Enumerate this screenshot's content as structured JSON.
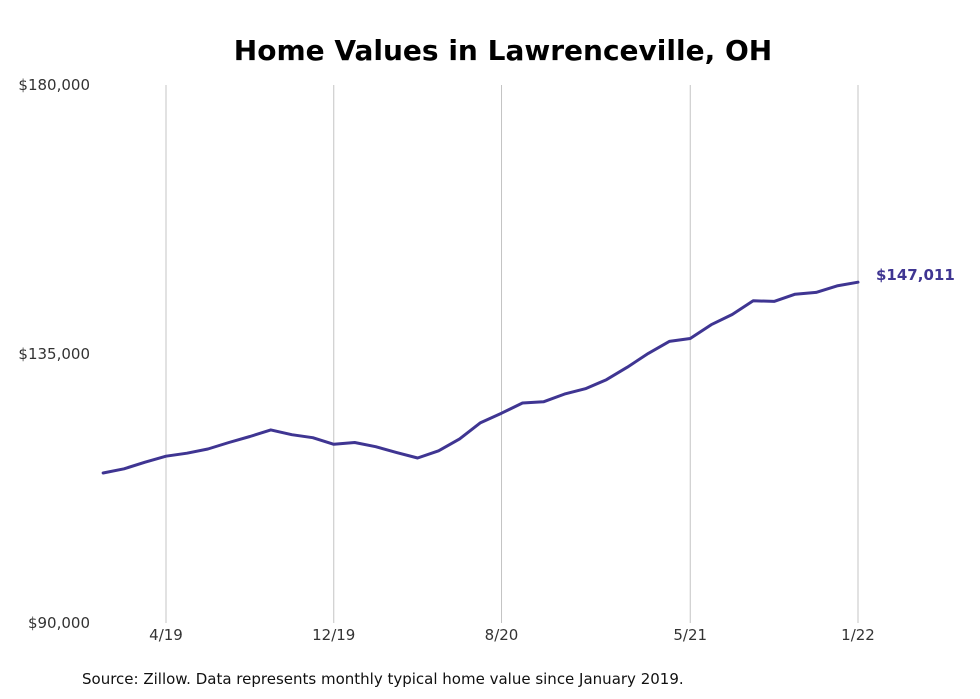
{
  "chart_data": {
    "type": "line",
    "title": "Home Values in Lawrenceville, OH",
    "xlabel": "",
    "ylabel": "",
    "ylim": [
      90000,
      180000
    ],
    "y_ticks": [
      {
        "value": 180000,
        "label": "$180,000"
      },
      {
        "value": 135000,
        "label": "$135,000"
      },
      {
        "value": 90000,
        "label": "$90,000"
      }
    ],
    "x_ticks": [
      {
        "date": "2019-04",
        "label": "4/19"
      },
      {
        "date": "2019-12",
        "label": "12/19"
      },
      {
        "date": "2020-08",
        "label": "8/20"
      },
      {
        "date": "2021-05",
        "label": "5/21"
      },
      {
        "date": "2022-01",
        "label": "1/22"
      }
    ],
    "x_range": [
      "2019-01",
      "2022-07"
    ],
    "grid": {
      "vertical": true,
      "horizontal": false
    },
    "legend": "none",
    "end_label": "$147,011",
    "series": [
      {
        "color": "#3f3592",
        "points": [
          {
            "x": "2019-01",
            "y": 115100
          },
          {
            "x": "2019-02",
            "y": 115800
          },
          {
            "x": "2019-03",
            "y": 116900
          },
          {
            "x": "2019-04",
            "y": 117900
          },
          {
            "x": "2019-05",
            "y": 118400
          },
          {
            "x": "2019-06",
            "y": 119100
          },
          {
            "x": "2019-07",
            "y": 120200
          },
          {
            "x": "2019-08",
            "y": 121200
          },
          {
            "x": "2019-09",
            "y": 122300
          },
          {
            "x": "2019-10",
            "y": 121500
          },
          {
            "x": "2019-11",
            "y": 121000
          },
          {
            "x": "2019-12",
            "y": 119900
          },
          {
            "x": "2020-01",
            "y": 120200
          },
          {
            "x": "2020-02",
            "y": 119500
          },
          {
            "x": "2020-03",
            "y": 118500
          },
          {
            "x": "2020-04",
            "y": 117600
          },
          {
            "x": "2020-05",
            "y": 118800
          },
          {
            "x": "2020-06",
            "y": 120800
          },
          {
            "x": "2020-07",
            "y": 123500
          },
          {
            "x": "2020-08",
            "y": 125100
          },
          {
            "x": "2020-09",
            "y": 126800
          },
          {
            "x": "2020-10",
            "y": 127000
          },
          {
            "x": "2020-11",
            "y": 128300
          },
          {
            "x": "2020-12",
            "y": 129200
          },
          {
            "x": "2021-01",
            "y": 130700
          },
          {
            "x": "2021-02",
            "y": 132800
          },
          {
            "x": "2021-03",
            "y": 135100
          },
          {
            "x": "2021-04",
            "y": 137100
          },
          {
            "x": "2021-05",
            "y": 137600
          },
          {
            "x": "2021-06",
            "y": 139900
          },
          {
            "x": "2021-07",
            "y": 141600
          },
          {
            "x": "2021-08",
            "y": 143900
          },
          {
            "x": "2021-09",
            "y": 143800
          },
          {
            "x": "2021-10",
            "y": 145000
          },
          {
            "x": "2021-11",
            "y": 145300
          },
          {
            "x": "2021-12",
            "y": 146400
          },
          {
            "x": "2022-01",
            "y": 147011
          }
        ]
      }
    ]
  },
  "source_note": "Source: Zillow. Data represents monthly typical home value since January 2019."
}
